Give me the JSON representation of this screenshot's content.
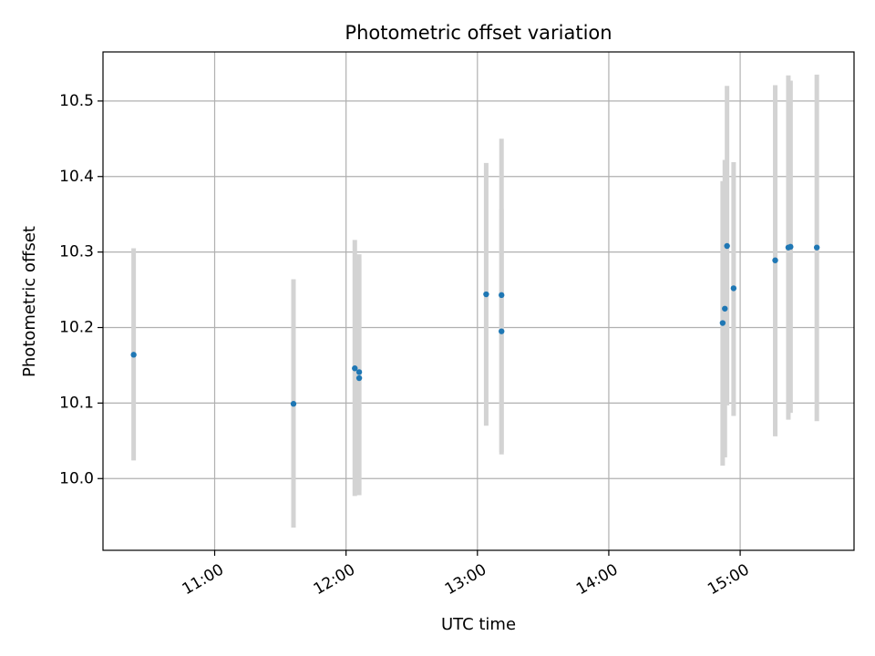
{
  "chart_data": {
    "type": "scatter",
    "title": "Photometric offset variation",
    "xlabel": "UTC time",
    "ylabel": "Photometric offset",
    "x_axis": "time",
    "xlim": [
      "10:09",
      "15:52"
    ],
    "ylim": [
      9.905,
      10.565
    ],
    "xticks": [
      "11:00",
      "12:00",
      "13:00",
      "14:00",
      "15:00"
    ],
    "yticks": [
      10.0,
      10.1,
      10.2,
      10.3,
      10.4,
      10.5
    ],
    "ytick_labels": [
      "10.0",
      "10.1",
      "10.2",
      "10.3",
      "10.4",
      "10.5"
    ],
    "grid": true,
    "colors": {
      "point": "#1f77b4",
      "errorbar": "#d3d3d3"
    },
    "points": [
      {
        "x": "10:23",
        "y": 10.164,
        "err_low": 10.024,
        "err_high": 10.305
      },
      {
        "x": "11:36",
        "y": 10.099,
        "err_low": 9.935,
        "err_high": 10.264
      },
      {
        "x": "12:04",
        "y": 10.146,
        "err_low": 9.977,
        "err_high": 10.316
      },
      {
        "x": "12:06",
        "y": 10.141,
        "err_low": 9.984,
        "err_high": 10.297
      },
      {
        "x": "12:06",
        "y": 10.133,
        "err_low": 9.978,
        "err_high": 10.29
      },
      {
        "x": "13:04",
        "y": 10.244,
        "err_low": 10.07,
        "err_high": 10.418
      },
      {
        "x": "13:11",
        "y": 10.243,
        "err_low": 10.035,
        "err_high": 10.45
      },
      {
        "x": "13:11",
        "y": 10.195,
        "err_low": 10.032,
        "err_high": 10.357
      },
      {
        "x": "14:52",
        "y": 10.206,
        "err_low": 10.017,
        "err_high": 10.394
      },
      {
        "x": "14:53",
        "y": 10.225,
        "err_low": 10.028,
        "err_high": 10.422
      },
      {
        "x": "14:54",
        "y": 10.308,
        "err_low": 10.097,
        "err_high": 10.52
      },
      {
        "x": "14:57",
        "y": 10.252,
        "err_low": 10.083,
        "err_high": 10.419
      },
      {
        "x": "15:16",
        "y": 10.289,
        "err_low": 10.056,
        "err_high": 10.521
      },
      {
        "x": "15:22",
        "y": 10.306,
        "err_low": 10.078,
        "err_high": 10.534
      },
      {
        "x": "15:23",
        "y": 10.307,
        "err_low": 10.087,
        "err_high": 10.527
      },
      {
        "x": "15:35",
        "y": 10.306,
        "err_low": 10.076,
        "err_high": 10.535
      }
    ]
  }
}
